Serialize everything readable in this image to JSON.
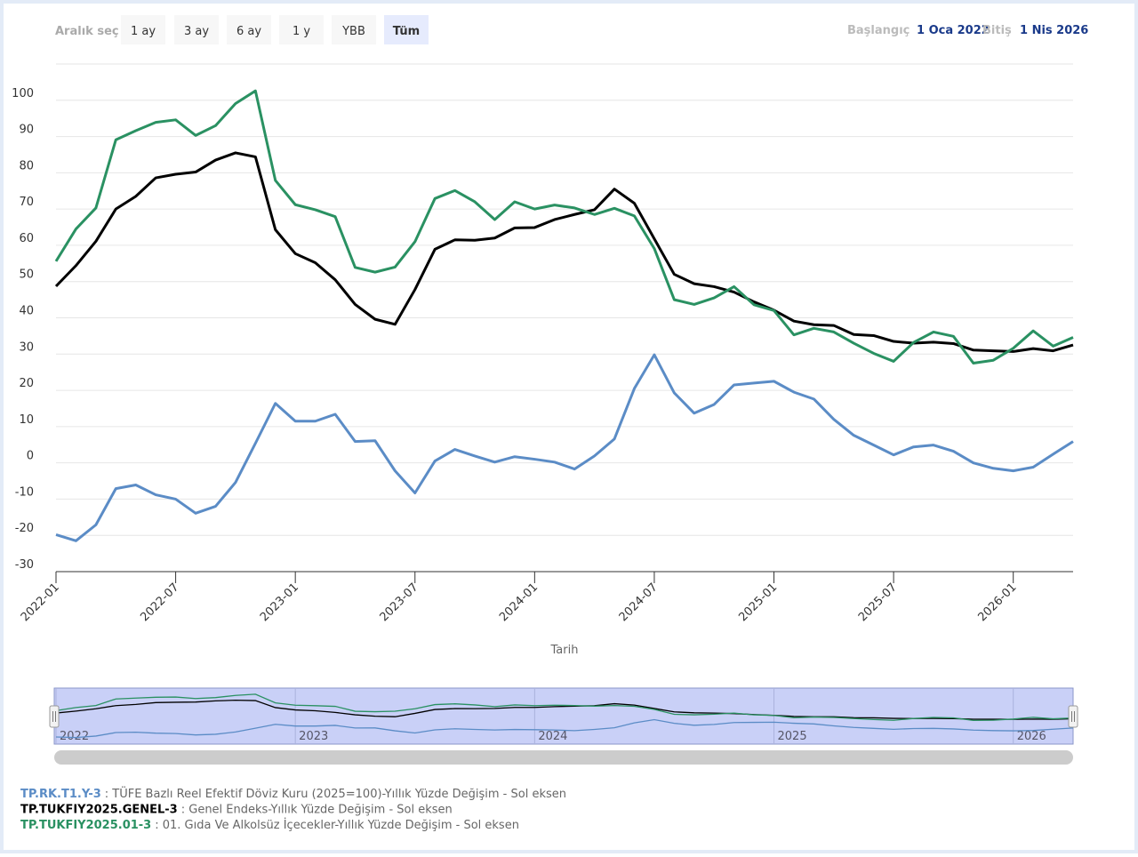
{
  "range_selector": {
    "label": "Aralık seç",
    "buttons": [
      "1 ay",
      "3 ay",
      "6 ay",
      "1 y",
      "YBB",
      "Tüm"
    ],
    "selected": 5
  },
  "date_range": {
    "start_label": "Başlangıç",
    "start": "1 Oca 2022",
    "end_label": "Bitiş",
    "end": "1 Nis 2026"
  },
  "chart_data": {
    "type": "line",
    "x": [
      "2022-01",
      "2022-02",
      "2022-03",
      "2022-04",
      "2022-05",
      "2022-06",
      "2022-07",
      "2022-08",
      "2022-09",
      "2022-10",
      "2022-11",
      "2022-12",
      "2023-01",
      "2023-02",
      "2023-03",
      "2023-04",
      "2023-05",
      "2023-06",
      "2023-07",
      "2023-08",
      "2023-09",
      "2023-10",
      "2023-11",
      "2023-12",
      "2024-01",
      "2024-02",
      "2024-03",
      "2024-04",
      "2024-05",
      "2024-06",
      "2024-07",
      "2024-08",
      "2024-09",
      "2024-10",
      "2024-11",
      "2024-12",
      "2025-01",
      "2025-02",
      "2025-03",
      "2025-04",
      "2025-05",
      "2025-06",
      "2025-07",
      "2025-08",
      "2025-09",
      "2025-10",
      "2025-11",
      "2025-12",
      "2026-01",
      "2026-02",
      "2026-03",
      "2026-04"
    ],
    "xticks": [
      "2022-01",
      "2022-07",
      "2023-01",
      "2023-07",
      "2024-01",
      "2024-07",
      "2025-01",
      "2025-07",
      "2026-01"
    ],
    "x_label": "Tarih",
    "ylim": [
      -30,
      110
    ],
    "yticks": [
      -30,
      -20,
      -10,
      0,
      10,
      20,
      30,
      40,
      50,
      60,
      70,
      80,
      90,
      100
    ],
    "grid": true,
    "series": [
      {
        "name": "TP.RK.T1.Y-3",
        "description": ": TÜFE Bazlı Reel Efektif Döviz Kuru (2025=100)-Yıllık Yüzde Değişim - Sol eksen",
        "color": "#5b8cc6",
        "values": [
          -19.8,
          -21.5,
          -17.1,
          -7.1,
          -6.1,
          -8.8,
          -10,
          -13.9,
          -12,
          -5.4,
          5.4,
          16.4,
          11.5,
          11.5,
          13.4,
          5.9,
          6.1,
          -2.2,
          -8.3,
          0.5,
          3.7,
          1.9,
          0.2,
          1.7,
          1,
          0.2,
          -1.7,
          1.9,
          6.6,
          20.5,
          29.8,
          19.3,
          13.7,
          16.1,
          21.5,
          22,
          22.5,
          19.5,
          17.6,
          12,
          7.6,
          4.9,
          2.2,
          4.4,
          4.9,
          3.2,
          0,
          -1.5,
          -2.2,
          -1.2,
          2.4,
          5.9
        ]
      },
      {
        "name": "TP.TUKFIY2025.GENEL-3",
        "description": ": Genel Endeks-Yıllık Yüzde Değişim - Sol eksen",
        "color": "#000000",
        "values": [
          48.7,
          54.4,
          61.1,
          70,
          73.5,
          78.6,
          79.6,
          80.2,
          83.5,
          85.5,
          84.4,
          64.3,
          57.7,
          55.2,
          50.5,
          43.7,
          39.6,
          38.2,
          47.8,
          58.9,
          61.5,
          61.4,
          62,
          64.8,
          64.9,
          67.1,
          68.5,
          69.8,
          75.5,
          71.6,
          61.8,
          52,
          49.4,
          48.6,
          47.1,
          44.4,
          42.1,
          39.1,
          38.1,
          37.9,
          35.4,
          35.1,
          33.5,
          33,
          33.3,
          32.9,
          31.1,
          30.9,
          30.7,
          31.5,
          30.9,
          32.5
        ]
      },
      {
        "name": "TP.TUKFIY2025.01-3",
        "description": ": 01. Gıda Ve Alkolsüz İçecekler-Yıllık Yüzde Değişim - Sol eksen",
        "color": "#2a9162",
        "values": [
          55.6,
          64.5,
          70.3,
          89.1,
          91.6,
          93.9,
          94.6,
          90.3,
          93,
          99.1,
          102.6,
          77.9,
          71.2,
          69.8,
          67.9,
          53.9,
          52.6,
          54,
          61,
          72.9,
          75.1,
          72,
          67.1,
          72,
          70,
          71.1,
          70.3,
          68.5,
          70.2,
          68.1,
          59.1,
          45,
          43.7,
          45.5,
          48.6,
          43.6,
          42,
          35.3,
          37.1,
          36.1,
          33,
          30.2,
          28,
          33.2,
          36.1,
          34.9,
          27.5,
          28.3,
          31.6,
          36.4,
          32.2,
          34.6
        ]
      }
    ],
    "navigator_labels": [
      "2022",
      "2023",
      "2024",
      "2025",
      "2026"
    ]
  }
}
